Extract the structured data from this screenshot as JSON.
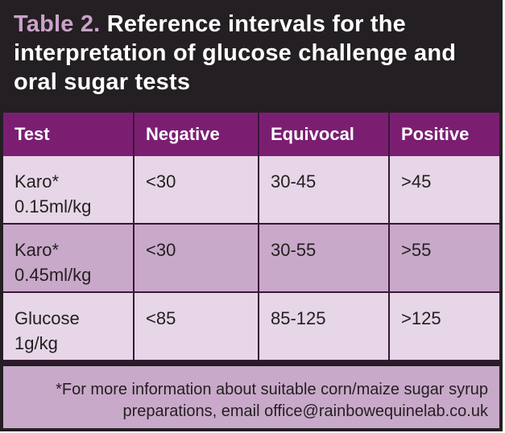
{
  "title": {
    "lead": "Table 2.",
    "text": "Reference intervals for the interpretation of glucose challenge and oral sugar tests"
  },
  "table": {
    "headers": [
      "Test",
      "Negative",
      "Equivocal",
      "Positive"
    ],
    "rows": [
      {
        "test_line1": "Karo*",
        "test_line2": "0.15ml/kg",
        "negative": "<30",
        "equivocal": "30-45",
        "positive": ">45"
      },
      {
        "test_line1": "Karo*",
        "test_line2": "0.45ml/kg",
        "negative": "<30",
        "equivocal": "30-55",
        "positive": ">55"
      },
      {
        "test_line1": "Glucose",
        "test_line2": "1g/kg",
        "negative": "<85",
        "equivocal": "85-125",
        "positive": ">125"
      }
    ]
  },
  "footnote": "*For more information about suitable corn/maize sugar syrup preparations, email office@rainbowequinelab.co.uk",
  "colors": {
    "background": "#241f22",
    "header": "#7b1e72",
    "row_light": "#e6d6e7",
    "row_dark": "#c9a9ca",
    "title_accent": "#c9a3c9"
  }
}
